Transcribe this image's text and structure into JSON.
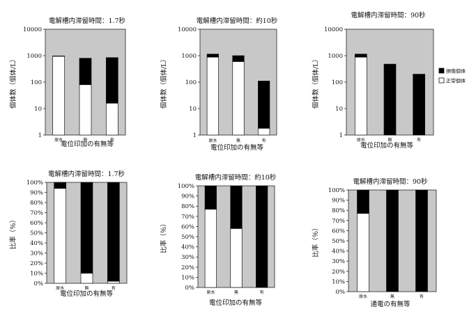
{
  "chart_data": [
    {
      "type": "bar",
      "stacked": true,
      "yscale": "log",
      "title": "電解槽内滞留時間：1.7秒",
      "xlabel": "電位印加の有無等",
      "ylabel": "個体数（個体/L）",
      "ylim": [
        1,
        10000
      ],
      "yticks": [
        "1",
        "10",
        "100",
        "1000",
        "10000"
      ],
      "categories": [
        "原水",
        "無",
        "有"
      ],
      "series": [
        {
          "name": "正常個体",
          "color": "#ffffff",
          "values": [
            950,
            80,
            16
          ]
        },
        {
          "name": "損傷個体",
          "color": "#000000",
          "values": [
            30,
            720,
            830
          ]
        }
      ],
      "background": "#c8c8c8",
      "grid": false
    },
    {
      "type": "bar",
      "stacked": true,
      "yscale": "log",
      "title": "電解槽内滞留時間：約10秒",
      "xlabel": "電位印加の有無等",
      "ylabel": "個体数（個体/L）",
      "ylim": [
        1,
        10000
      ],
      "yticks": [
        "1",
        "10",
        "100",
        "1000",
        "10000"
      ],
      "categories": [
        "原水",
        "無",
        "有"
      ],
      "series": [
        {
          "name": "正常個体",
          "color": "#ffffff",
          "values": [
            880,
            600,
            1.8
          ]
        },
        {
          "name": "損傷個体",
          "color": "#000000",
          "values": [
            270,
            400,
            108
          ]
        }
      ],
      "background": "#c8c8c8",
      "grid": false
    },
    {
      "type": "bar",
      "stacked": true,
      "yscale": "log",
      "title": "電解槽内滞留時間：90秒",
      "xlabel": "電位印加の有無等",
      "ylabel": "個体数（個体/L）",
      "ylim": [
        1,
        10000
      ],
      "yticks": [
        "1",
        "10",
        "100",
        "1000",
        "10000"
      ],
      "categories": [
        "原水",
        "無",
        "有"
      ],
      "series": [
        {
          "name": "正常個体",
          "color": "#ffffff",
          "values": [
            880,
            0,
            0
          ]
        },
        {
          "name": "損傷個体",
          "color": "#000000",
          "values": [
            270,
            480,
            200
          ]
        }
      ],
      "legend": [
        "損傷個体",
        "正常個体"
      ],
      "legend_position": "right",
      "background": "#c8c8c8",
      "grid": false
    },
    {
      "type": "bar",
      "stacked": true,
      "title": "電解槽内滞留時間：1.7秒",
      "xlabel": "電位印加の有無等",
      "ylabel": "比率（％）",
      "ylim": [
        0,
        100
      ],
      "yticks": [
        "0%",
        "10%",
        "20%",
        "30%",
        "40%",
        "50%",
        "60%",
        "70%",
        "80%",
        "90%",
        "100%"
      ],
      "categories": [
        "原水",
        "無",
        "有"
      ],
      "series": [
        {
          "name": "正常個体",
          "color": "#ffffff",
          "values": [
            94,
            10,
            2
          ]
        },
        {
          "name": "損傷個体",
          "color": "#000000",
          "values": [
            6,
            90,
            98
          ]
        }
      ],
      "background": "#c8c8c8",
      "grid": false
    },
    {
      "type": "bar",
      "stacked": true,
      "title": "電解槽内滞留時間：約10秒",
      "xlabel": "電位印加の有無等",
      "ylabel": "比率（％）",
      "ylim": [
        0,
        100
      ],
      "yticks": [
        "0%",
        "10%",
        "20%",
        "30%",
        "40%",
        "50%",
        "60%",
        "70%",
        "80%",
        "90%",
        "100%"
      ],
      "categories": [
        "原水",
        "無",
        "有"
      ],
      "series": [
        {
          "name": "正常個体",
          "color": "#ffffff",
          "values": [
            77,
            58,
            0
          ]
        },
        {
          "name": "損傷個体",
          "color": "#000000",
          "values": [
            23,
            42,
            100
          ]
        }
      ],
      "background": "#c8c8c8",
      "grid": false
    },
    {
      "type": "bar",
      "stacked": true,
      "title": "電解槽内滞留時間：90秒",
      "xlabel": "通電の有無等",
      "ylabel": "比率（％）",
      "ylim": [
        0,
        100
      ],
      "yticks": [
        "0%",
        "10%",
        "20%",
        "30%",
        "40%",
        "50%",
        "60%",
        "70%",
        "80%",
        "90%",
        "100%"
      ],
      "categories": [
        "原水",
        "無",
        "有"
      ],
      "series": [
        {
          "name": "正常個体",
          "color": "#ffffff",
          "values": [
            77,
            0,
            0
          ]
        },
        {
          "name": "損傷個体",
          "color": "#000000",
          "values": [
            23,
            100,
            100
          ]
        }
      ],
      "background": "#c8c8c8",
      "grid": false
    }
  ]
}
